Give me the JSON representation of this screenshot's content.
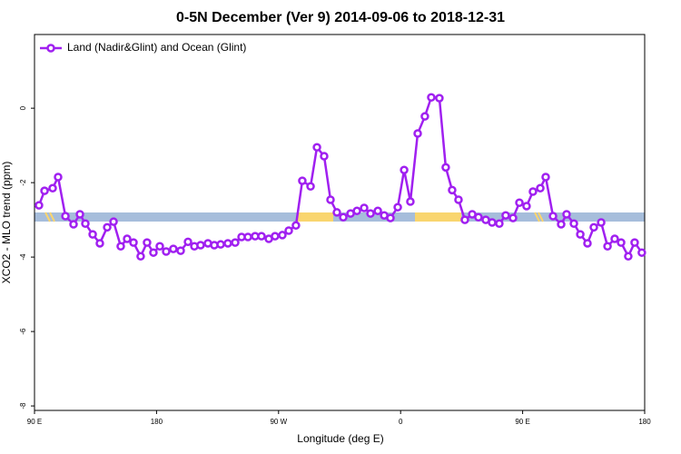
{
  "chart_data": {
    "type": "line",
    "title": "0-5N December (Ver 9)   2014-09-06 to 2018-12-31",
    "x_label": "Longitude (deg E)",
    "y_label": "XCO2 - MLO trend (ppm)",
    "xlim": [
      90,
      540
    ],
    "ylim": [
      -8.12,
      1.98
    ],
    "xticks": [
      {
        "value": 90,
        "label": "90 E"
      },
      {
        "value": 180,
        "label": "180"
      },
      {
        "value": 270,
        "label": "90 W"
      },
      {
        "value": 360,
        "label": "0"
      },
      {
        "value": 450,
        "label": "90 E"
      },
      {
        "value": 540,
        "label": "180"
      }
    ],
    "yticks": [
      0,
      -2,
      -4,
      -6,
      -8
    ],
    "legend": "top-left",
    "x": [
      93.3,
      97.4,
      103.4,
      107.4,
      112.8,
      118.8,
      123.5,
      127.5,
      132.9,
      138.2,
      143.6,
      148.3,
      153.6,
      158.3,
      163.0,
      168.3,
      173.0,
      177.7,
      182.4,
      187.1,
      192.4,
      197.8,
      203.2,
      207.9,
      212.5,
      217.9,
      222.6,
      227.3,
      232.6,
      238.0,
      242.7,
      247.4,
      252.7,
      257.4,
      262.8,
      267.4,
      272.8,
      277.5,
      282.8,
      287.5,
      293.6,
      298.3,
      303.6,
      308.3,
      313.0,
      317.7,
      323.1,
      327.8,
      333.1,
      337.8,
      343.2,
      347.9,
      352.5,
      357.9,
      362.6,
      367.2,
      372.6,
      377.9,
      382.6,
      388.6,
      393.3,
      398.0,
      402.7,
      407.4,
      412.8,
      417.4,
      422.8,
      427.5,
      432.8,
      437.5,
      442.9,
      447.6,
      452.9,
      457.6,
      463.0,
      467.0,
      472.4,
      478.4,
      482.4,
      487.8,
      492.5,
      497.8,
      502.5,
      507.9,
      512.6,
      517.9,
      522.6,
      527.9,
      532.6,
      537.9
    ],
    "series": [
      {
        "name": "Land (Nadir&Glint) and Ocean (Glint)",
        "color": "#a020f0",
        "values": [
          -2.61,
          -2.22,
          -2.15,
          -1.85,
          -2.9,
          -3.12,
          -2.85,
          -3.1,
          -3.39,
          -3.63,
          -3.2,
          -3.05,
          -3.71,
          -3.51,
          -3.61,
          -3.98,
          -3.61,
          -3.88,
          -3.71,
          -3.85,
          -3.78,
          -3.83,
          -3.59,
          -3.71,
          -3.68,
          -3.63,
          -3.68,
          -3.66,
          -3.63,
          -3.61,
          -3.46,
          -3.46,
          -3.44,
          -3.44,
          -3.51,
          -3.44,
          -3.41,
          -3.29,
          -3.15,
          -1.95,
          -2.1,
          -1.05,
          -1.29,
          -2.46,
          -2.8,
          -2.93,
          -2.83,
          -2.76,
          -2.68,
          -2.83,
          -2.76,
          -2.88,
          -2.95,
          -2.66,
          -1.66,
          -2.51,
          -0.68,
          -0.22,
          0.29,
          0.27,
          -1.59,
          -2.2,
          -2.46,
          -3.0,
          -2.85,
          -2.93,
          -3.0,
          -3.07,
          -3.1,
          -2.88,
          -2.95,
          -2.54,
          -2.63,
          -2.24,
          -2.15,
          -1.85,
          -2.9,
          -3.12,
          -2.85,
          -3.1,
          -3.39,
          -3.63,
          -3.2,
          -3.07,
          -3.71,
          -3.51,
          -3.61,
          -3.98,
          -3.61,
          -3.88
        ]
      }
    ]
  }
}
